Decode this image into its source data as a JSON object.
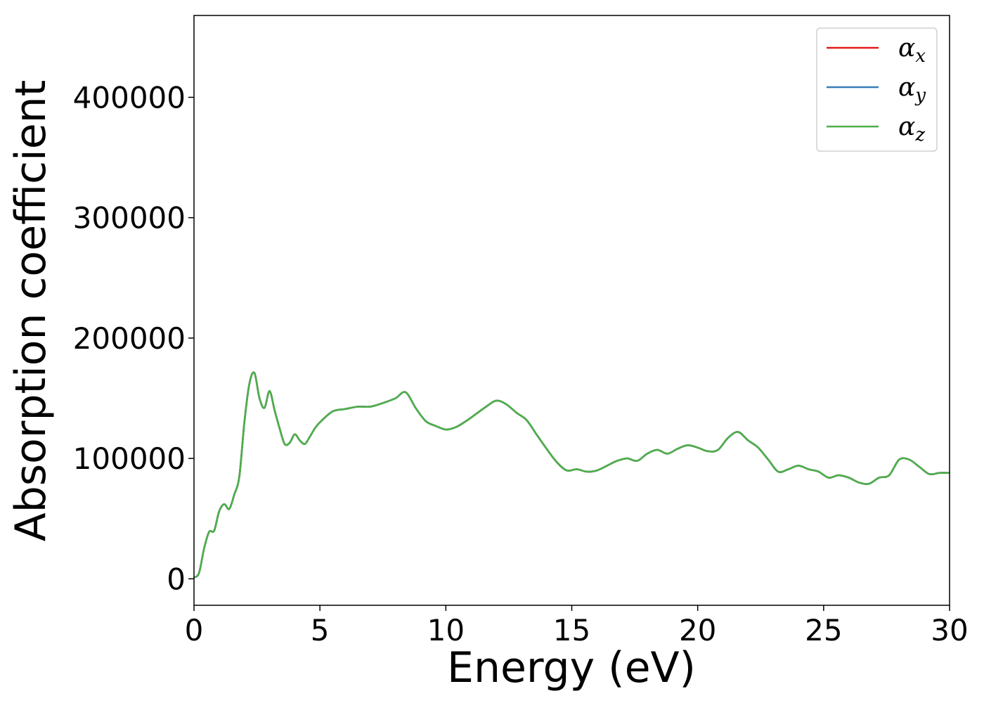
{
  "chart_data": {
    "type": "line",
    "title": "",
    "xlabel": "Energy (eV)",
    "ylabel": "Absorption coefficient",
    "xlim": [
      0,
      30
    ],
    "ylim": [
      -22000,
      468000
    ],
    "xticks": [
      0,
      5,
      10,
      15,
      20,
      25,
      30
    ],
    "yticks": [
      0,
      100000,
      200000,
      300000,
      400000
    ],
    "xtick_labels": [
      "0",
      "5",
      "10",
      "15",
      "20",
      "25",
      "30"
    ],
    "ytick_labels": [
      "0",
      "100000",
      "200000",
      "300000",
      "400000"
    ],
    "grid": false,
    "legend_position": "top-right",
    "x": [
      0,
      0.2,
      0.4,
      0.6,
      0.8,
      1.0,
      1.2,
      1.4,
      1.6,
      1.8,
      2.0,
      2.2,
      2.4,
      2.6,
      2.8,
      3.0,
      3.2,
      3.4,
      3.6,
      3.8,
      4.0,
      4.2,
      4.4,
      4.6,
      4.8,
      5.0,
      5.5,
      6.0,
      6.5,
      7.0,
      7.5,
      8.0,
      8.4,
      8.8,
      9.2,
      9.6,
      10.0,
      10.4,
      10.8,
      11.2,
      11.6,
      12.0,
      12.4,
      12.8,
      13.2,
      13.6,
      14.0,
      14.4,
      14.8,
      15.2,
      15.6,
      16.0,
      16.4,
      16.8,
      17.2,
      17.6,
      18.0,
      18.4,
      18.8,
      19.2,
      19.6,
      20.0,
      20.4,
      20.8,
      21.2,
      21.6,
      22.0,
      22.4,
      22.8,
      23.2,
      23.6,
      24.0,
      24.4,
      24.8,
      25.2,
      25.6,
      26.0,
      26.4,
      26.8,
      27.2,
      27.6,
      28.0,
      28.4,
      28.8,
      29.2,
      29.6,
      30.0
    ],
    "series": [
      {
        "name": "α_x",
        "color": "#e41a1c",
        "values": [
          1000,
          5000,
          25000,
          39000,
          40000,
          56000,
          62000,
          58000,
          70000,
          85000,
          130000,
          162000,
          171000,
          150000,
          142000,
          156000,
          140000,
          125000,
          112000,
          113000,
          120000,
          115000,
          112000,
          118000,
          125000,
          130000,
          139000,
          141000,
          143000,
          143000,
          146000,
          150000,
          155000,
          142000,
          131000,
          127000,
          124000,
          126000,
          131000,
          137000,
          143000,
          148000,
          145000,
          138000,
          132000,
          120000,
          108000,
          97000,
          90000,
          91000,
          89000,
          90000,
          94000,
          98000,
          100000,
          98000,
          104000,
          107000,
          104000,
          108000,
          111000,
          109000,
          106000,
          107000,
          117000,
          122000,
          115000,
          109000,
          99000,
          89000,
          91000,
          94000,
          91000,
          89000,
          84000,
          86000,
          84000,
          80000,
          79000,
          84000,
          86000,
          99000,
          99000,
          93000,
          87000,
          88000,
          88000
        ]
      },
      {
        "name": "α_y",
        "color": "#377eb8",
        "values": [
          1000,
          5000,
          25000,
          39000,
          40000,
          56000,
          62000,
          58000,
          70000,
          85000,
          130000,
          162000,
          171000,
          150000,
          142000,
          156000,
          140000,
          125000,
          112000,
          113000,
          120000,
          115000,
          112000,
          118000,
          125000,
          130000,
          139000,
          141000,
          143000,
          143000,
          146000,
          150000,
          155000,
          142000,
          131000,
          127000,
          124000,
          126000,
          131000,
          137000,
          143000,
          148000,
          145000,
          138000,
          132000,
          120000,
          108000,
          97000,
          90000,
          91000,
          89000,
          90000,
          94000,
          98000,
          100000,
          98000,
          104000,
          107000,
          104000,
          108000,
          111000,
          109000,
          106000,
          107000,
          117000,
          122000,
          115000,
          109000,
          99000,
          89000,
          91000,
          94000,
          91000,
          89000,
          84000,
          86000,
          84000,
          80000,
          79000,
          84000,
          86000,
          99000,
          99000,
          93000,
          87000,
          88000,
          88000
        ]
      },
      {
        "name": "α_z",
        "color": "#4daf4a",
        "values": [
          1000,
          5000,
          25000,
          39000,
          40000,
          56000,
          62000,
          58000,
          70000,
          85000,
          130000,
          162000,
          171000,
          150000,
          142000,
          156000,
          140000,
          125000,
          112000,
          113000,
          120000,
          115000,
          112000,
          118000,
          125000,
          130000,
          139000,
          141000,
          143000,
          143000,
          146000,
          150000,
          155000,
          142000,
          131000,
          127000,
          124000,
          126000,
          131000,
          137000,
          143000,
          148000,
          145000,
          138000,
          132000,
          120000,
          108000,
          97000,
          90000,
          91000,
          89000,
          90000,
          94000,
          98000,
          100000,
          98000,
          104000,
          107000,
          104000,
          108000,
          111000,
          109000,
          106000,
          107000,
          117000,
          122000,
          115000,
          109000,
          99000,
          89000,
          91000,
          94000,
          91000,
          89000,
          84000,
          86000,
          84000,
          80000,
          79000,
          84000,
          86000,
          99000,
          99000,
          93000,
          87000,
          88000,
          88000
        ]
      }
    ],
    "legend": [
      {
        "symbol": "α",
        "subscript": "x",
        "color": "#e41a1c"
      },
      {
        "symbol": "α",
        "subscript": "y",
        "color": "#377eb8"
      },
      {
        "symbol": "α",
        "subscript": "z",
        "color": "#4daf4a"
      }
    ]
  }
}
